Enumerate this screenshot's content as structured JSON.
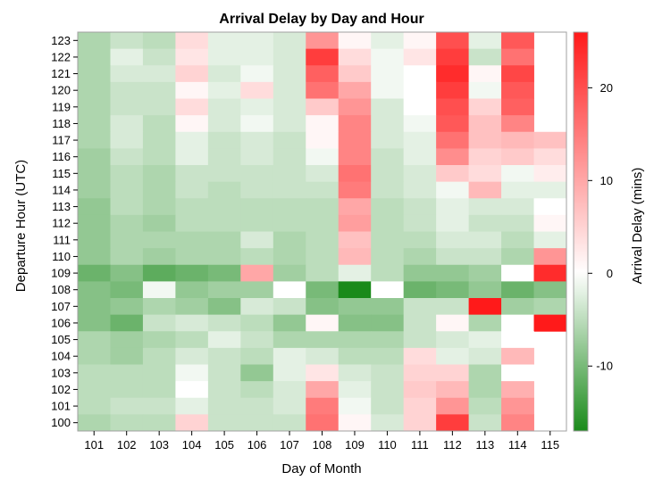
{
  "chart_data": {
    "type": "heatmap",
    "title": "Arrival Delay by Day and Hour",
    "xlabel": "Day of Month",
    "ylabel": "Departure Hour (UTC)",
    "colorbar_label": "Arrival Delay (mins)",
    "x_categories": [
      "101",
      "102",
      "103",
      "104",
      "105",
      "106",
      "107",
      "108",
      "109",
      "110",
      "111",
      "112",
      "113",
      "114",
      "115"
    ],
    "y_categories": [
      "123",
      "122",
      "121",
      "120",
      "119",
      "118",
      "117",
      "116",
      "115",
      "114",
      "113",
      "112",
      "111",
      "110",
      "109",
      "108",
      "107",
      "106",
      "105",
      "104",
      "103",
      "102",
      "101",
      "100"
    ],
    "color_range": [
      -17,
      26
    ],
    "colorbar_ticks": [
      20,
      10,
      0,
      -10
    ],
    "colors": {
      "low": "#1a8a1a",
      "mid": "#ffffff",
      "high": "#ff1a1a",
      "frame": "#a0a0a0"
    },
    "values": [
      [
        -6,
        -4,
        -5,
        4,
        -2,
        -2,
        -3,
        12,
        1,
        -2,
        1,
        20,
        -2,
        19,
        null
      ],
      [
        -6,
        -2,
        -4,
        3,
        -2,
        -2,
        -3,
        22,
        4,
        -1,
        3,
        22,
        -4,
        16,
        null
      ],
      [
        -6,
        -3,
        -3,
        5,
        -3,
        -1,
        -3,
        18,
        6,
        -1,
        0,
        24,
        1,
        21,
        null
      ],
      [
        -6,
        -4,
        -4,
        1,
        -2,
        4,
        -3,
        16,
        10,
        -1,
        0,
        22,
        -1,
        19,
        null
      ],
      [
        -6,
        -4,
        -4,
        4,
        -3,
        -2,
        -3,
        6,
        12,
        -3,
        0,
        20,
        5,
        18,
        null
      ],
      [
        -6,
        -3,
        -5,
        1,
        -3,
        -1,
        -3,
        1,
        14,
        -3,
        -1,
        19,
        7,
        14,
        null
      ],
      [
        -6,
        -3,
        -5,
        -2,
        -4,
        -3,
        -4,
        1,
        14,
        -3,
        -2,
        16,
        7,
        8,
        7
      ],
      [
        -7,
        -4,
        -5,
        -2,
        -4,
        -3,
        -4,
        -1,
        14,
        -4,
        -2,
        13,
        5,
        6,
        4
      ],
      [
        -7,
        -5,
        -6,
        -4,
        -4,
        -4,
        -4,
        -3,
        16,
        -4,
        -3,
        6,
        4,
        -1,
        2
      ],
      [
        -7,
        -5,
        -6,
        -4,
        -5,
        -4,
        -4,
        -4,
        15,
        -4,
        -3,
        -1,
        8,
        -2,
        -2
      ],
      [
        -8,
        -5,
        -6,
        -5,
        -5,
        -5,
        -5,
        -5,
        10,
        -5,
        -4,
        -2,
        -3,
        -3,
        0
      ],
      [
        -8,
        -6,
        -7,
        -5,
        -5,
        -5,
        -5,
        -5,
        11,
        -5,
        -4,
        -2,
        -4,
        -4,
        1
      ],
      [
        -8,
        -6,
        -6,
        -6,
        -6,
        -3,
        -6,
        -5,
        7,
        -5,
        -5,
        -3,
        -3,
        -5,
        -2
      ],
      [
        -8,
        -6,
        -7,
        -6,
        -6,
        -5,
        -6,
        -5,
        8,
        -5,
        -6,
        -4,
        -4,
        -6,
        12
      ],
      [
        -11,
        -9,
        -12,
        -11,
        -10,
        10,
        -7,
        -5,
        -2,
        -5,
        -8,
        -8,
        -7,
        0,
        24
      ],
      [
        -9,
        -10,
        -1,
        -8,
        -7,
        -7,
        0,
        -10,
        -17,
        0,
        -11,
        -10,
        -8,
        -11,
        -9
      ],
      [
        -9,
        -8,
        -6,
        -7,
        -9,
        -3,
        -4,
        -9,
        -8,
        -8,
        -4,
        -4,
        26,
        -7,
        -6
      ],
      [
        -9,
        -11,
        -4,
        -3,
        -4,
        -5,
        -8,
        1,
        -9,
        -9,
        -4,
        1,
        -6,
        0,
        26
      ],
      [
        -6,
        -7,
        -6,
        -5,
        -2,
        -4,
        -6,
        -6,
        -6,
        -6,
        -4,
        -3,
        -2,
        0,
        null
      ],
      [
        -6,
        -7,
        -5,
        -3,
        -4,
        -5,
        -2,
        -3,
        -5,
        -5,
        4,
        -2,
        -3,
        8,
        null
      ],
      [
        -5,
        -5,
        -5,
        -1,
        -4,
        -8,
        -2,
        3,
        -3,
        -4,
        5,
        5,
        -6,
        0,
        null
      ],
      [
        -5,
        -5,
        -5,
        0,
        -4,
        -5,
        -3,
        10,
        -2,
        -4,
        6,
        8,
        -6,
        9,
        null
      ],
      [
        -5,
        -4,
        -4,
        -2,
        -4,
        -4,
        -3,
        15,
        -1,
        -4,
        5,
        12,
        -5,
        12,
        null
      ],
      [
        -6,
        -5,
        -5,
        5,
        -4,
        -4,
        -4,
        16,
        1,
        -3,
        5,
        22,
        -4,
        14,
        null
      ]
    ]
  }
}
